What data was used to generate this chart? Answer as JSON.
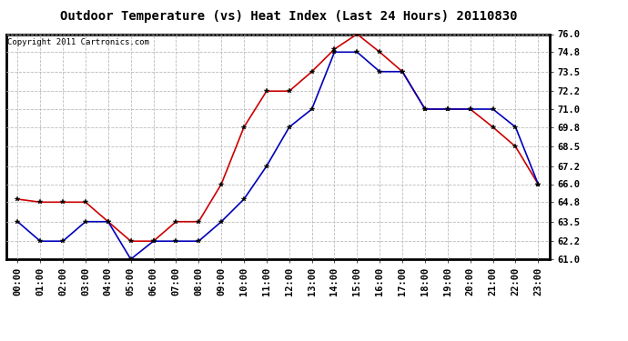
{
  "title": "Outdoor Temperature (vs) Heat Index (Last 24 Hours) 20110830",
  "copyright": "Copyright 2011 Cartronics.com",
  "x_labels": [
    "00:00",
    "01:00",
    "02:00",
    "03:00",
    "04:00",
    "05:00",
    "06:00",
    "07:00",
    "08:00",
    "09:00",
    "10:00",
    "11:00",
    "12:00",
    "13:00",
    "14:00",
    "15:00",
    "16:00",
    "17:00",
    "18:00",
    "19:00",
    "20:00",
    "21:00",
    "22:00",
    "23:00"
  ],
  "temp_values": [
    63.5,
    62.2,
    62.2,
    63.5,
    63.5,
    61.0,
    62.2,
    62.2,
    62.2,
    63.5,
    65.0,
    67.2,
    69.8,
    71.0,
    74.8,
    74.8,
    73.5,
    73.5,
    71.0,
    71.0,
    71.0,
    71.0,
    69.8,
    66.0
  ],
  "heat_values": [
    65.0,
    64.8,
    64.8,
    64.8,
    63.5,
    62.2,
    62.2,
    63.5,
    63.5,
    66.0,
    69.8,
    72.2,
    72.2,
    73.5,
    75.0,
    76.0,
    74.8,
    73.5,
    71.0,
    71.0,
    71.0,
    69.8,
    68.5,
    66.0
  ],
  "temp_color": "#0000bb",
  "heat_color": "#cc0000",
  "ylim_min": 61.0,
  "ylim_max": 76.0,
  "y_ticks": [
    61.0,
    62.2,
    63.5,
    64.8,
    66.0,
    67.2,
    68.5,
    69.8,
    71.0,
    72.2,
    73.5,
    74.8,
    76.0
  ],
  "bg_color": "#ffffff",
  "grid_color": "#bbbbbb",
  "title_fontsize": 10,
  "copyright_fontsize": 6.5,
  "tick_fontsize": 7.5
}
